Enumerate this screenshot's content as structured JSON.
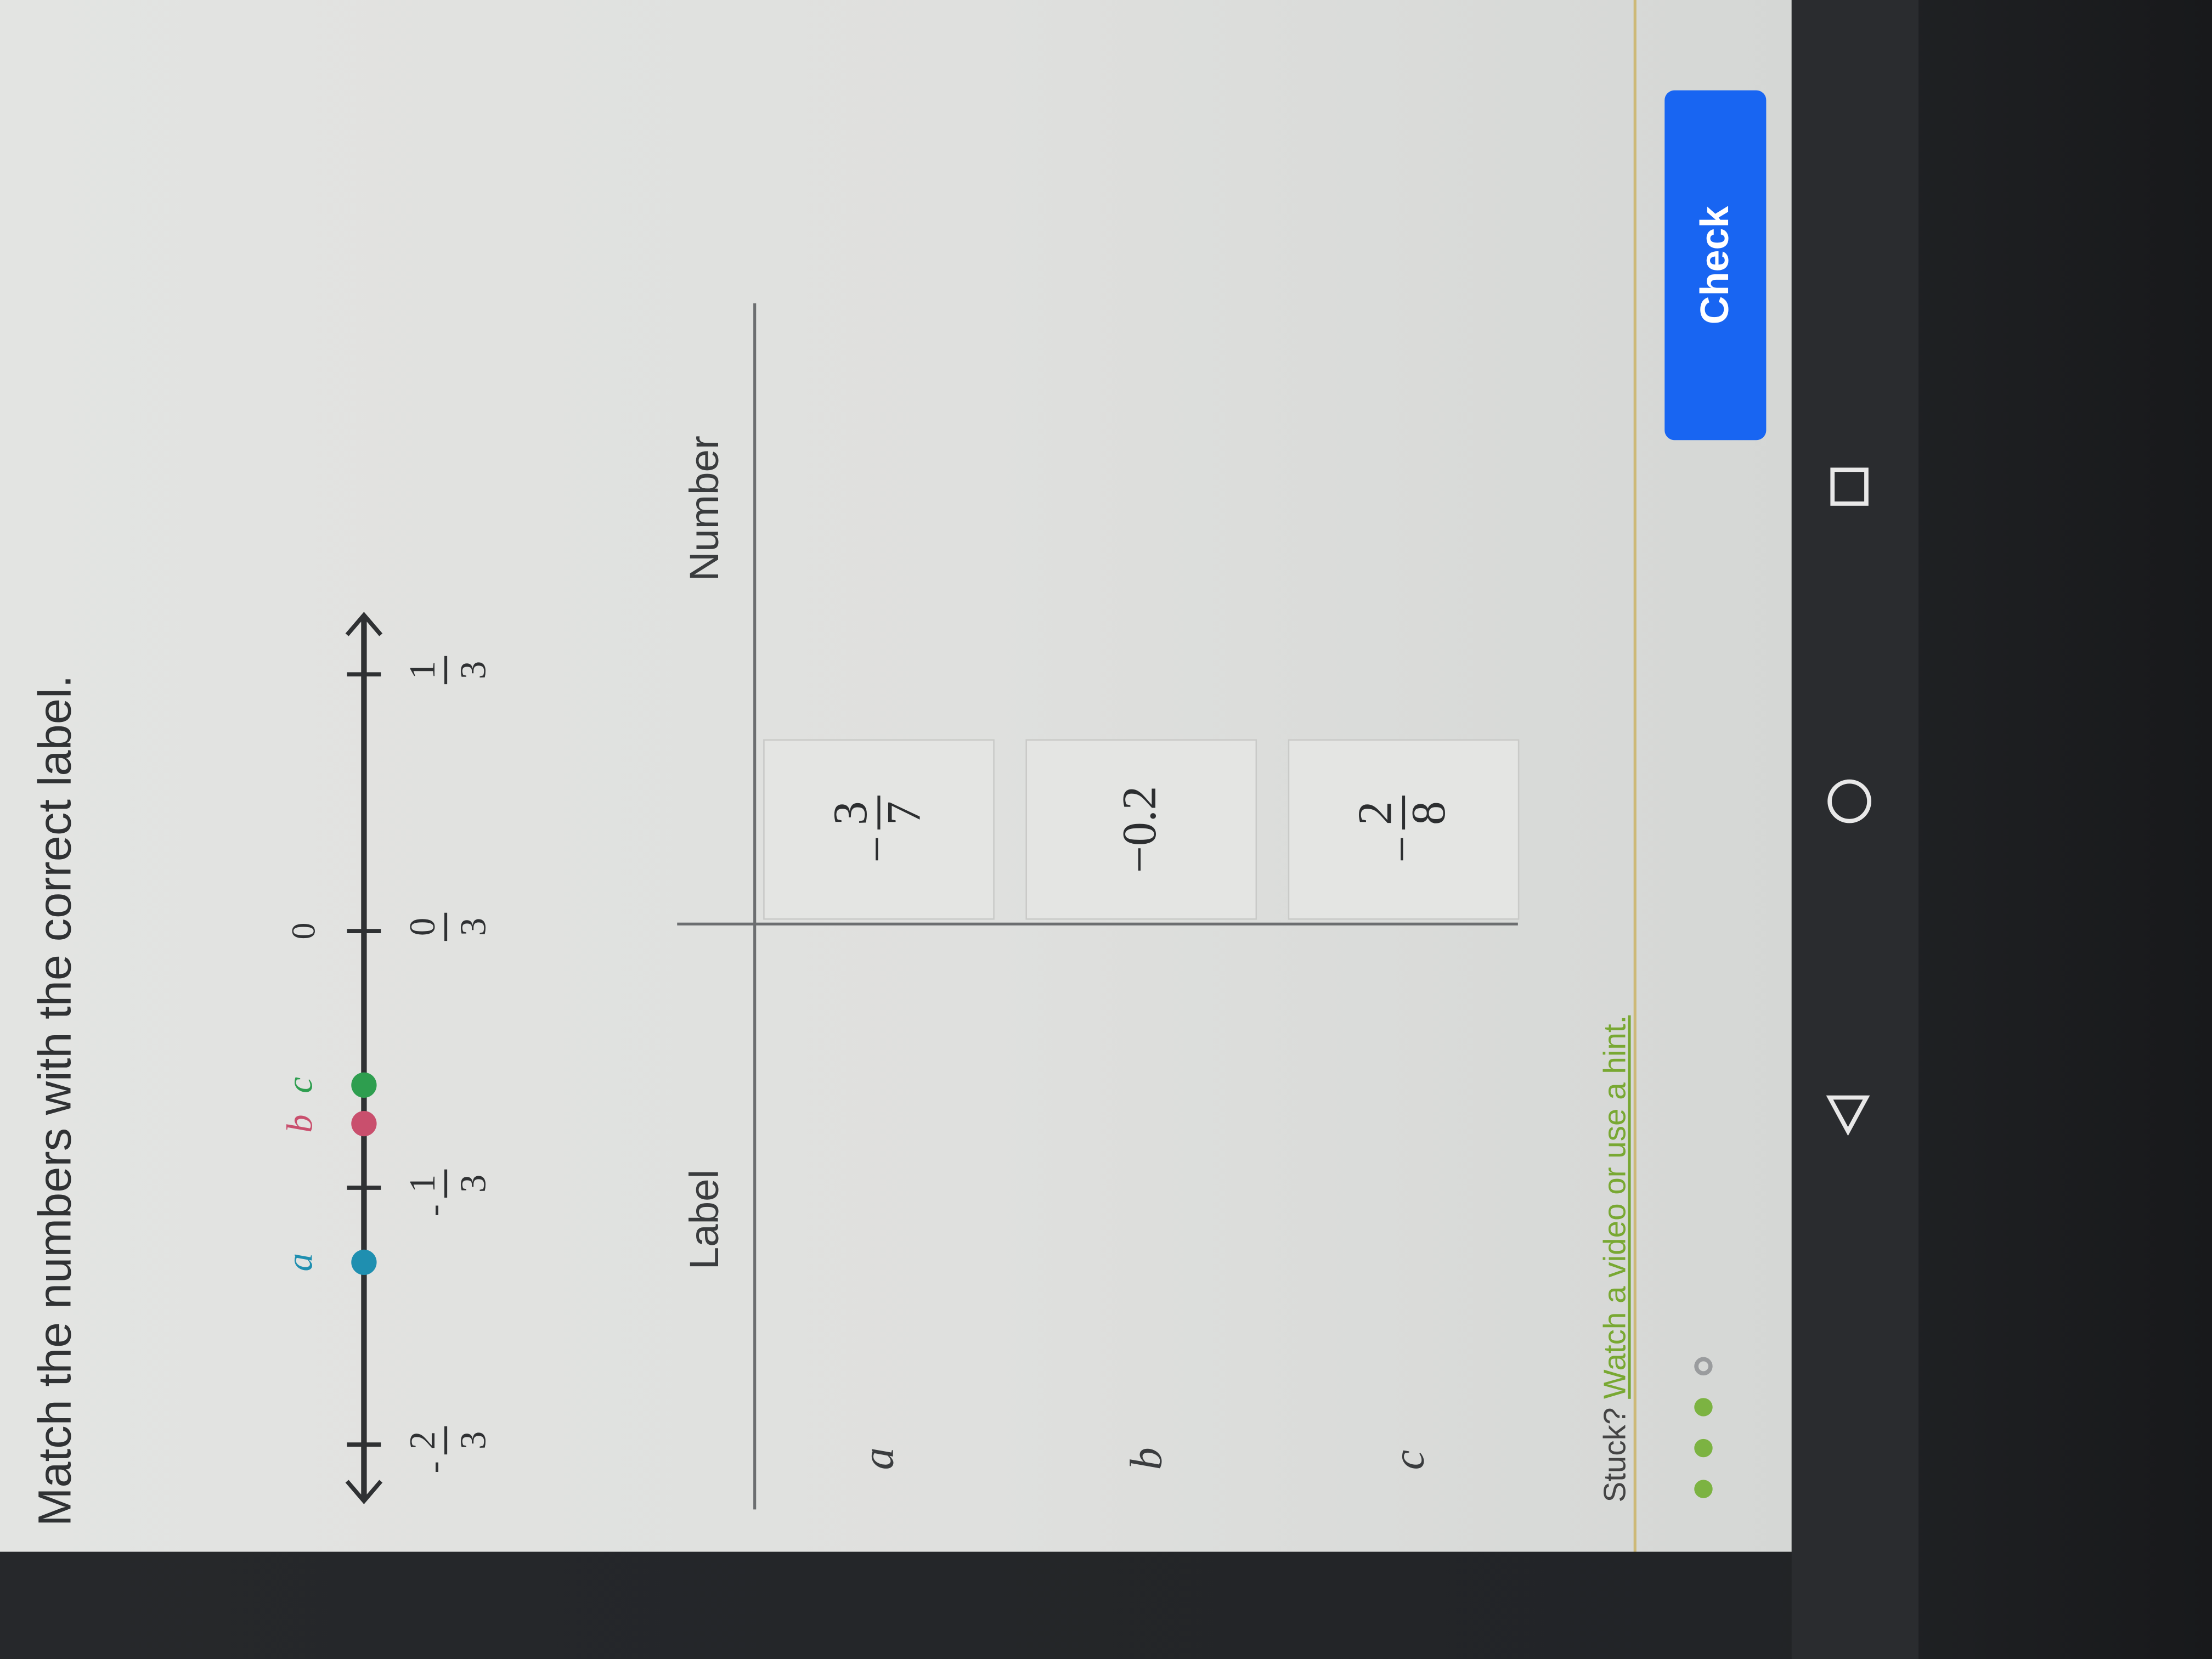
{
  "question": {
    "title": "Match the numbers with the correct label."
  },
  "number_line": {
    "range": [
      -0.75,
      0.42
    ],
    "ticks": [
      {
        "value": -0.6667,
        "sign": "-",
        "num": "2",
        "den": "3"
      },
      {
        "value": -0.3333,
        "sign": "-",
        "num": "1",
        "den": "3"
      },
      {
        "value": 0,
        "sign": "",
        "num": "0",
        "den": "3"
      },
      {
        "value": 0.3333,
        "sign": "",
        "num": "1",
        "den": "3"
      }
    ],
    "zero_label": "0",
    "points": [
      {
        "label": "a",
        "value": -0.43,
        "color": "#1f8fb0"
      },
      {
        "label": "b",
        "value": -0.25,
        "color": "#c94f6d"
      },
      {
        "label": "c",
        "value": -0.2,
        "color": "#2e9e4f"
      }
    ]
  },
  "table": {
    "header_label": "Label",
    "header_number": "Number",
    "rows": [
      "a",
      "b",
      "c"
    ],
    "tiles": [
      {
        "sign": "−",
        "num": "3",
        "den": "7"
      },
      {
        "text": "−0.2"
      },
      {
        "sign": "−",
        "num": "2",
        "den": "8"
      }
    ]
  },
  "footer": {
    "stuck": "Stuck?",
    "hint_link": "Watch a video or use a hint.",
    "progress": {
      "completed": 3,
      "total": 4,
      "color": "#7cb342"
    },
    "check_label": "Check",
    "check_color": "#1865f2"
  },
  "nav": {
    "icons": [
      "back-icon",
      "home-icon",
      "recents-icon"
    ]
  }
}
